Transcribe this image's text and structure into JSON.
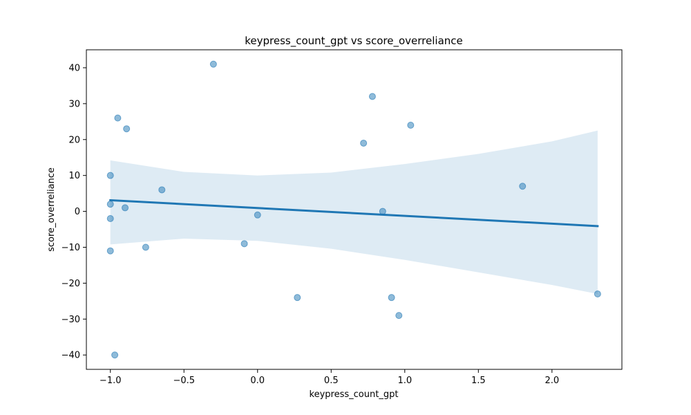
{
  "chart_data": {
    "type": "scatter",
    "title": "keypress_count_gpt vs score_overreliance",
    "xlabel": "keypress_count_gpt",
    "ylabel": "score_overreliance",
    "xlim": [
      -1.163,
      2.475
    ],
    "ylim": [
      -44,
      45
    ],
    "xticks": [
      "−1.0",
      "−0.5",
      "0.0",
      "0.5",
      "1.0",
      "1.5",
      "2.0"
    ],
    "xtick_values": [
      -1.0,
      -0.5,
      0.0,
      0.5,
      1.0,
      1.5,
      2.0
    ],
    "yticks": [
      "−40",
      "−30",
      "−20",
      "−10",
      "0",
      "10",
      "20",
      "30",
      "40"
    ],
    "ytick_values": [
      -40,
      -30,
      -20,
      -10,
      0,
      10,
      20,
      30,
      40
    ],
    "grid": false,
    "points": [
      {
        "x": -1.0,
        "y": 10
      },
      {
        "x": -1.0,
        "y": 2
      },
      {
        "x": -1.0,
        "y": -2
      },
      {
        "x": -1.0,
        "y": -11
      },
      {
        "x": -0.97,
        "y": -40
      },
      {
        "x": -0.95,
        "y": 26
      },
      {
        "x": -0.9,
        "y": 1
      },
      {
        "x": -0.89,
        "y": 23
      },
      {
        "x": -0.76,
        "y": -10
      },
      {
        "x": -0.65,
        "y": 6
      },
      {
        "x": -0.3,
        "y": 41
      },
      {
        "x": -0.09,
        "y": -9
      },
      {
        "x": 0.0,
        "y": -1
      },
      {
        "x": 0.27,
        "y": -24
      },
      {
        "x": 0.72,
        "y": 19
      },
      {
        "x": 0.78,
        "y": 32
      },
      {
        "x": 0.85,
        "y": 0
      },
      {
        "x": 0.91,
        "y": -24
      },
      {
        "x": 0.96,
        "y": -29
      },
      {
        "x": 1.04,
        "y": 24
      },
      {
        "x": 1.8,
        "y": 7
      },
      {
        "x": 2.31,
        "y": -23
      }
    ],
    "regression": {
      "x": [
        -1.0,
        2.31
      ],
      "y": [
        3.1,
        -4.1
      ]
    },
    "confidence_band": {
      "x": [
        -1.0,
        -0.5,
        0.0,
        0.5,
        1.0,
        1.5,
        2.0,
        2.31
      ],
      "upper": [
        14.2,
        11.0,
        10.0,
        10.8,
        13.2,
        16.0,
        19.5,
        22.5
      ],
      "lower": [
        -9.2,
        -7.6,
        -8.2,
        -10.4,
        -13.5,
        -17.0,
        -20.5,
        -23.0
      ]
    },
    "colors": {
      "points": "#1f77b4",
      "line": "#1f77b4",
      "band": "#1f77b4"
    }
  }
}
